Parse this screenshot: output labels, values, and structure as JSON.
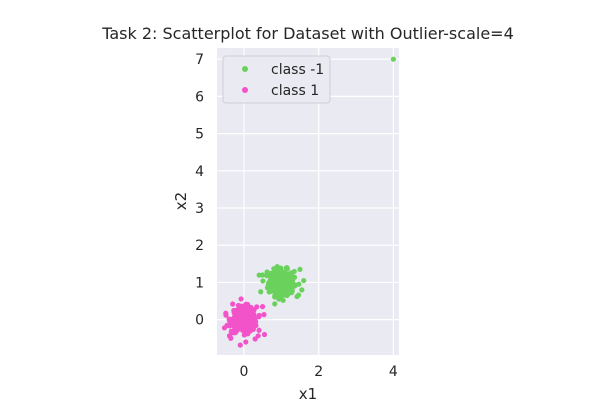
{
  "chart_data": {
    "type": "scatter",
    "title": "Task 2: Scatterplot for Dataset with Outlier-scale=4",
    "xlabel": "x1",
    "ylabel": "x2",
    "xlim": [
      -0.72,
      4.15
    ],
    "ylim": [
      -0.95,
      7.3
    ],
    "xticks": [
      0,
      2,
      4
    ],
    "yticks": [
      0,
      1,
      2,
      3,
      4,
      5,
      6,
      7
    ],
    "grid": true,
    "legend_position": "top-left",
    "series": [
      {
        "name": "class -1",
        "color": "#6ad25c",
        "cluster": {
          "center": [
            1.0,
            1.0
          ],
          "spread": 0.17,
          "count": 300
        },
        "points": [
          [
            4.0,
            7.0
          ],
          [
            1.55,
            0.8
          ],
          [
            1.6,
            1.05
          ],
          [
            0.5,
            1.2
          ],
          [
            1.5,
            1.35
          ],
          [
            0.45,
            0.75
          ],
          [
            1.05,
            0.52
          ],
          [
            0.62,
            1.28
          ],
          [
            1.42,
            0.62
          ]
        ]
      },
      {
        "name": "class 1",
        "color": "#f253c8",
        "cluster": {
          "center": [
            0.0,
            0.0
          ],
          "spread": 0.17,
          "count": 300
        },
        "points": [
          [
            -0.52,
            -0.22
          ],
          [
            -0.48,
            0.12
          ],
          [
            0.5,
            0.35
          ],
          [
            0.55,
            -0.4
          ],
          [
            -0.3,
            0.42
          ],
          [
            0.05,
            -0.6
          ],
          [
            0.3,
            -0.52
          ],
          [
            -0.35,
            -0.5
          ]
        ]
      }
    ]
  }
}
